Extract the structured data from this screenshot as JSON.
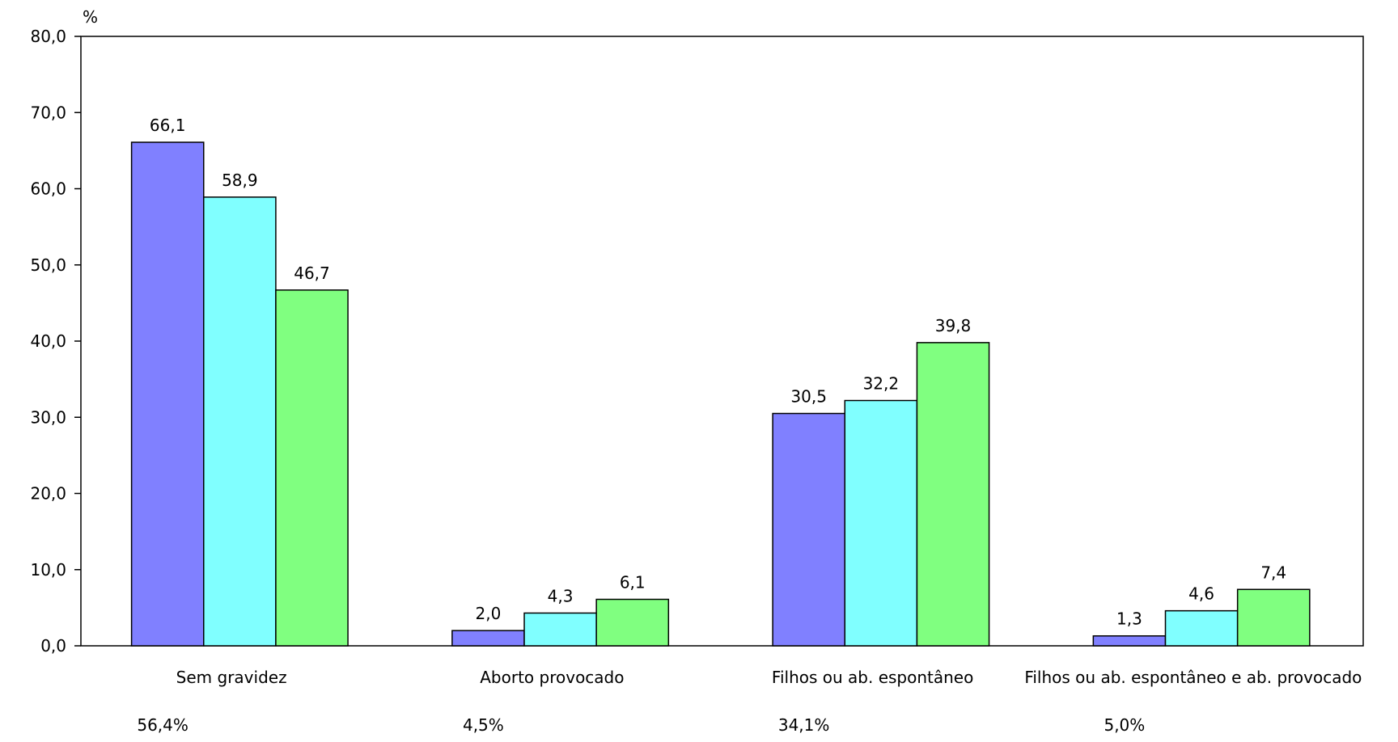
{
  "chart_data": {
    "type": "bar",
    "ylabel": "%",
    "ylim": [
      0,
      80
    ],
    "yticks": [
      "0,0",
      "10,0",
      "20,0",
      "30,0",
      "40,0",
      "50,0",
      "60,0",
      "70,0",
      "80,0"
    ],
    "grid": false,
    "legend": "none",
    "categories": [
      "Sem gravidez",
      "Aborto provocado",
      "Filhos ou ab. espontâneo",
      "Filhos ou ab. espontâneo e ab. provocado"
    ],
    "category_totals": [
      "56,4%",
      "4,5%",
      "34,1%",
      "5,0%"
    ],
    "series": [
      {
        "color": "#8080ff",
        "values": [
          66.1,
          2.0,
          30.5,
          1.3
        ],
        "labels": [
          "66,1",
          "2,0",
          "30,5",
          "1,3"
        ]
      },
      {
        "color": "#80ffff",
        "values": [
          58.9,
          4.3,
          32.2,
          4.6
        ],
        "labels": [
          "58,9",
          "4,3",
          "32,2",
          "4,6"
        ]
      },
      {
        "color": "#80ff80",
        "values": [
          46.7,
          6.1,
          39.8,
          7.4
        ],
        "labels": [
          "46,7",
          "6,1",
          "39,8",
          "7,4"
        ]
      }
    ]
  }
}
